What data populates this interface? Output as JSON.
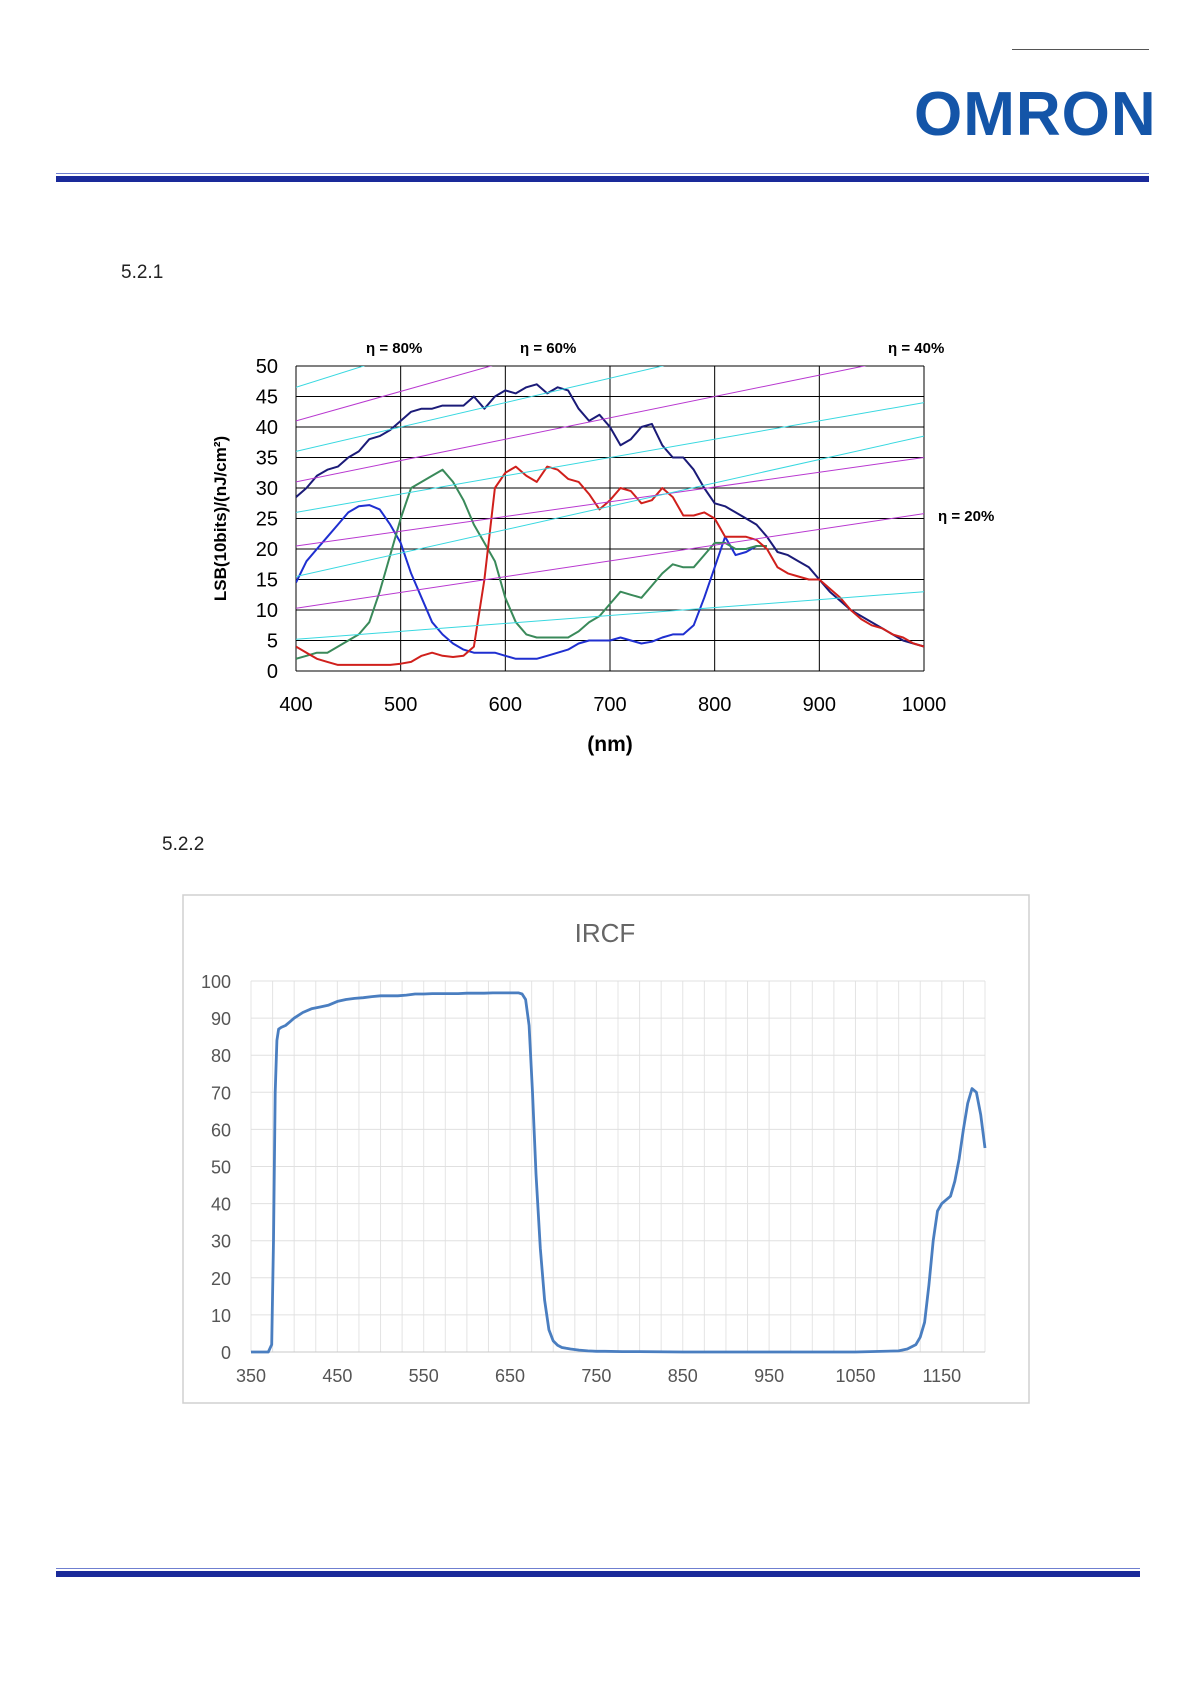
{
  "header": {
    "logo_text": "OMRON",
    "brand_color": "#1455a8",
    "rule_color": "#1a2a9a"
  },
  "sections": {
    "s1": "5.2.1",
    "s2": "5.2.2"
  },
  "chart_data": [
    {
      "type": "line",
      "title": "",
      "xlabel": "(nm)",
      "ylabel": "LSB(10bits)/(nJ/cm²)",
      "xlim": [
        400,
        1000
      ],
      "ylim": [
        0,
        50
      ],
      "x_ticks": [
        400,
        500,
        600,
        700,
        800,
        900,
        1000
      ],
      "y_ticks": [
        0,
        5,
        10,
        15,
        20,
        25,
        30,
        35,
        40,
        45,
        50
      ],
      "grid": true,
      "annotations": [
        "η = 80%",
        "η = 60%",
        "η = 40%",
        "η = 20%"
      ],
      "series": [
        {
          "color": "#1b1b78",
          "x": [
            400,
            410,
            420,
            430,
            440,
            450,
            460,
            470,
            480,
            490,
            500,
            510,
            520,
            530,
            540,
            550,
            560,
            570,
            580,
            590,
            600,
            610,
            620,
            630,
            640,
            650,
            660,
            670,
            680,
            690,
            700,
            710,
            720,
            730,
            740,
            750,
            760,
            770,
            780,
            790,
            800,
            810,
            820,
            830,
            840,
            850,
            860,
            870,
            880,
            890,
            900,
            910,
            920,
            930,
            940,
            950,
            960,
            970,
            980,
            990,
            1000
          ],
          "y": [
            28.5,
            30,
            32,
            33,
            33.5,
            35,
            36,
            38,
            38.5,
            39.5,
            41,
            42.5,
            43,
            43,
            43.5,
            43.5,
            43.5,
            45,
            43,
            45,
            46,
            45.5,
            46.5,
            47,
            45.5,
            46.5,
            46,
            43,
            41,
            42,
            40,
            37,
            38,
            40,
            40.5,
            37,
            35,
            35,
            33,
            30,
            27.5,
            27,
            26,
            25,
            24,
            22,
            19.5,
            19,
            18,
            17,
            15,
            13,
            11.5,
            10,
            9,
            8,
            7,
            6,
            5,
            4.5,
            4
          ]
        },
        {
          "color": "#1f2fd0",
          "x": [
            400,
            410,
            420,
            430,
            440,
            450,
            460,
            470,
            480,
            490,
            500,
            510,
            520,
            530,
            540,
            550,
            560,
            570,
            580,
            590,
            600,
            610,
            620,
            630,
            640,
            650,
            660,
            670,
            680,
            690,
            700,
            710,
            720,
            730,
            740,
            750,
            760,
            770,
            780,
            790,
            800,
            810,
            820,
            830,
            840,
            850
          ],
          "y": [
            14.5,
            18,
            20,
            22,
            24,
            26,
            27,
            27.2,
            26.5,
            24,
            21,
            16,
            12,
            8,
            6,
            4.5,
            3.5,
            3,
            3,
            3,
            2.5,
            2,
            2,
            2,
            2.5,
            3,
            3.5,
            4.5,
            5,
            5,
            5,
            5.5,
            5,
            4.5,
            4.8,
            5.5,
            6,
            6,
            7.5,
            12,
            17,
            22,
            19,
            19.5,
            20.5,
            20.5
          ]
        },
        {
          "color": "#3a8a5a",
          "x": [
            400,
            410,
            420,
            430,
            440,
            450,
            460,
            470,
            480,
            490,
            500,
            510,
            520,
            530,
            540,
            550,
            560,
            570,
            580,
            590,
            600,
            610,
            620,
            630,
            640,
            650,
            660,
            670,
            680,
            690,
            700,
            710,
            720,
            730,
            740,
            750,
            760,
            770,
            780,
            790,
            800,
            810,
            820,
            830,
            840,
            850
          ],
          "y": [
            2,
            2.5,
            3,
            3,
            4,
            5,
            6,
            8,
            13,
            19,
            25,
            30,
            31,
            32,
            33,
            31,
            28,
            24,
            21,
            18,
            12,
            8,
            6,
            5.5,
            5.5,
            5.5,
            5.5,
            6.5,
            8,
            9,
            11,
            13,
            12.5,
            12,
            14,
            16,
            17.5,
            17,
            17,
            19,
            21,
            21,
            20,
            20,
            20.5,
            20.5
          ]
        },
        {
          "color": "#d0201c",
          "x": [
            400,
            410,
            420,
            430,
            440,
            450,
            460,
            470,
            480,
            490,
            500,
            510,
            520,
            530,
            540,
            550,
            560,
            570,
            580,
            590,
            600,
            610,
            620,
            630,
            640,
            650,
            660,
            670,
            680,
            690,
            700,
            710,
            720,
            730,
            740,
            750,
            760,
            770,
            780,
            790,
            800,
            810,
            820,
            830,
            840,
            850,
            860,
            870,
            880,
            890,
            900,
            910,
            920,
            930,
            940,
            950,
            960,
            970,
            980,
            990,
            1000
          ],
          "y": [
            4,
            3,
            2,
            1.5,
            1,
            1,
            1,
            1,
            1,
            1,
            1.2,
            1.5,
            2.5,
            3,
            2.5,
            2.3,
            2.5,
            4,
            15,
            30,
            32.5,
            33.5,
            32,
            31,
            33.5,
            33,
            31.5,
            31,
            29,
            26.5,
            28,
            30,
            29.5,
            27.5,
            28,
            30,
            28.5,
            25.5,
            25.5,
            26,
            25,
            22,
            22,
            22,
            21.5,
            20,
            17,
            16,
            15.5,
            15,
            15,
            13.5,
            12,
            10,
            8.5,
            7.5,
            7,
            6,
            5.5,
            4.5,
            4
          ]
        },
        {
          "color": "#b838d0",
          "role": "iso-efficiency",
          "x": [
            400,
            1000
          ],
          "y": [
            41,
            70
          ]
        },
        {
          "color": "#b838d0",
          "role": "iso-efficiency",
          "x": [
            400,
            1000
          ],
          "y": [
            31,
            52
          ]
        },
        {
          "color": "#b838d0",
          "role": "iso-efficiency",
          "x": [
            400,
            1000
          ],
          "y": [
            20.5,
            35
          ]
        },
        {
          "color": "#b838d0",
          "role": "iso-efficiency",
          "x": [
            400,
            1000
          ],
          "y": [
            10.3,
            25.8
          ]
        },
        {
          "color": "#38d8e0",
          "role": "iso-efficiency",
          "x": [
            400,
            1000
          ],
          "y": [
            46.5,
            79
          ]
        },
        {
          "color": "#38d8e0",
          "role": "iso-efficiency",
          "x": [
            400,
            1000
          ],
          "y": [
            36,
            60
          ]
        },
        {
          "color": "#38d8e0",
          "role": "iso-efficiency",
          "x": [
            400,
            1000
          ],
          "y": [
            26,
            44
          ]
        },
        {
          "color": "#38d8e0",
          "role": "iso-efficiency",
          "x": [
            400,
            1000
          ],
          "y": [
            15.5,
            38.5
          ]
        },
        {
          "color": "#38d8e0",
          "role": "iso-efficiency",
          "x": [
            400,
            1000
          ],
          "y": [
            5.2,
            13
          ]
        }
      ]
    },
    {
      "type": "line",
      "title": "IRCF",
      "xlabel": "",
      "ylabel": "",
      "xlim": [
        350,
        1200
      ],
      "ylim": [
        0,
        100
      ],
      "x_ticks": [
        350,
        450,
        550,
        650,
        750,
        850,
        950,
        1050,
        1150
      ],
      "y_ticks": [
        0,
        10,
        20,
        30,
        40,
        50,
        60,
        70,
        80,
        90,
        100
      ],
      "grid": true,
      "series": [
        {
          "color": "#4a7ec0",
          "x": [
            350,
            370,
            374,
            376,
            378,
            380,
            382,
            385,
            390,
            395,
            400,
            410,
            420,
            430,
            440,
            450,
            460,
            470,
            480,
            490,
            500,
            510,
            520,
            530,
            540,
            550,
            560,
            570,
            580,
            590,
            600,
            610,
            620,
            630,
            640,
            650,
            660,
            664,
            668,
            672,
            676,
            680,
            685,
            690,
            695,
            700,
            705,
            710,
            715,
            720,
            730,
            740,
            750,
            760,
            780,
            800,
            850,
            900,
            950,
            1000,
            1050,
            1100,
            1110,
            1120,
            1125,
            1130,
            1135,
            1140,
            1145,
            1150,
            1160,
            1165,
            1170,
            1175,
            1180,
            1185,
            1190,
            1195,
            1200
          ],
          "y": [
            0,
            0,
            2,
            30,
            70,
            84,
            87,
            87.5,
            88,
            89,
            90,
            91.5,
            92.5,
            93,
            93.5,
            94.5,
            95,
            95.3,
            95.5,
            95.8,
            96,
            96,
            96,
            96.2,
            96.5,
            96.5,
            96.6,
            96.6,
            96.6,
            96.6,
            96.7,
            96.7,
            96.7,
            96.8,
            96.8,
            96.8,
            96.8,
            96.5,
            95,
            88,
            70,
            48,
            28,
            14,
            6,
            3,
            1.8,
            1.2,
            1,
            0.8,
            0.5,
            0.3,
            0.2,
            0.2,
            0.1,
            0.1,
            0,
            0,
            0,
            0,
            0,
            0.3,
            0.8,
            2,
            4,
            8,
            18,
            30,
            38,
            40,
            42,
            46,
            52,
            60,
            67,
            71,
            70,
            64,
            55
          ]
        }
      ]
    }
  ]
}
